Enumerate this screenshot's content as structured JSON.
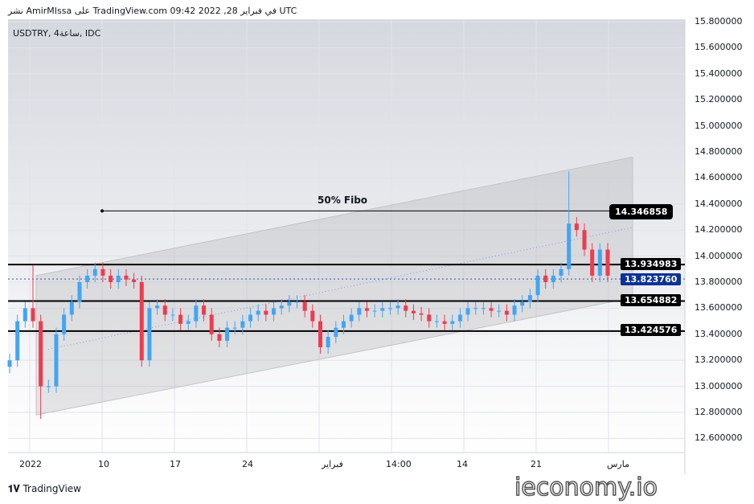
{
  "header": {
    "published": "نشر AmirMIssa على TradingView.com 09:42 2022 ,28 في فبراير UTC"
  },
  "symbol": "USDTRY, 4ساعة, IDC",
  "footer": {
    "brand": "TradingView",
    "watermark": "ieconomy.io"
  },
  "chart_data": {
    "type": "candlestick",
    "symbol": "USDTRY",
    "ylim": [
      12.5,
      15.85
    ],
    "y_ticks": [
      "15.800000",
      "15.600000",
      "15.400000",
      "15.200000",
      "15.000000",
      "14.800000",
      "14.600000",
      "14.400000",
      "14.200000",
      "14.000000",
      "13.800000",
      "13.600000",
      "13.400000",
      "13.200000",
      "13.000000",
      "12.800000",
      "12.600000"
    ],
    "x_ticks": [
      "2022",
      "10",
      "17",
      "24",
      "فبراير",
      "14:00",
      "14",
      "21",
      "مارس"
    ],
    "closes": [
      13.2,
      13.5,
      13.6,
      13.5,
      13.0,
      13.0,
      13.4,
      13.55,
      13.65,
      13.8,
      13.85,
      13.9,
      13.85,
      13.8,
      13.85,
      13.82,
      13.8,
      13.2,
      13.6,
      13.62,
      13.55,
      13.55,
      13.48,
      13.5,
      13.62,
      13.55,
      13.4,
      13.35,
      13.45,
      13.45,
      13.5,
      13.55,
      13.58,
      13.55,
      13.6,
      13.62,
      13.65,
      13.65,
      13.58,
      13.5,
      13.3,
      13.38,
      13.45,
      13.5,
      13.55,
      13.6,
      13.58,
      13.58,
      13.6,
      13.6,
      13.62,
      13.58,
      13.56,
      13.55,
      13.5,
      13.5,
      13.48,
      13.5,
      13.55,
      13.6,
      13.6,
      13.6,
      13.58,
      13.58,
      13.55,
      13.62,
      13.65,
      13.7,
      13.85,
      13.8,
      13.85,
      13.9,
      14.25,
      14.2,
      14.05,
      13.85,
      14.05,
      13.85
    ],
    "horizontal_levels": [
      {
        "value": "13.934983"
      },
      {
        "value": "13.654882"
      },
      {
        "value": "13.424576"
      }
    ],
    "fibo": {
      "label": "50% Fibo",
      "value": "14.346858"
    },
    "current_price": {
      "value": "13.823760",
      "color": "#0c3299"
    },
    "channel": {
      "upper": [
        13.85,
        14.76
      ],
      "lower": [
        12.78,
        13.68
      ]
    },
    "colors": {
      "up": "#42a5f5",
      "down": "#ef3b4e"
    }
  }
}
